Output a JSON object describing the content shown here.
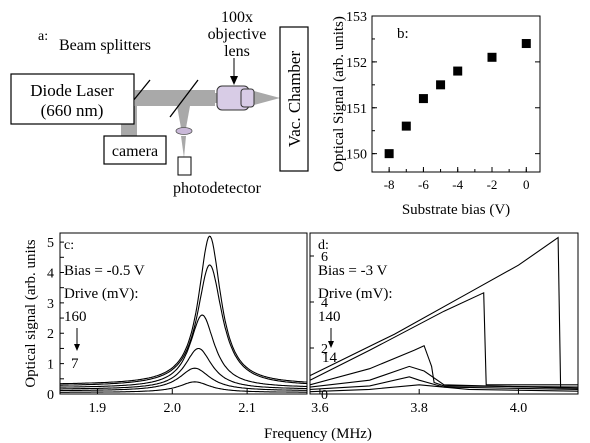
{
  "panel_a": {
    "label": "a:",
    "beam_splitters": "Beam splitters",
    "objective_line1": "100x",
    "objective_line2": "objective",
    "objective_line3": "lens",
    "laser_line1": "Diode Laser",
    "laser_line2": "(660 nm)",
    "camera": "camera",
    "photodetector": "photodetector",
    "chamber": "Vac. Chamber"
  },
  "chart_data": [
    {
      "panel": "b",
      "type": "scatter",
      "label": "b:",
      "xlabel": "Substrate bias (V)",
      "ylabel": "Optical Signal (arb. units)",
      "xlim": [
        -9,
        0.8
      ],
      "ylim": [
        149.6,
        153
      ],
      "xticks": [
        "-8",
        "-6",
        "-4",
        "-2",
        "0"
      ],
      "yticks": [
        "150",
        "151",
        "152",
        "153"
      ],
      "x": [
        -8,
        -7,
        -6,
        -5,
        -4,
        -2,
        0
      ],
      "y": [
        150.0,
        150.6,
        151.2,
        151.5,
        151.8,
        152.1,
        152.4
      ]
    },
    {
      "panel": "c",
      "type": "line",
      "label": "c:",
      "bias": "Bias = -0.5 V",
      "drive": "Drive (mV):",
      "drive_top": "160",
      "drive_bottom": "7",
      "ylabel": "Optical signal (arb. units",
      "xlim": [
        1.85,
        2.18
      ],
      "ylim": [
        0,
        5.3
      ],
      "xticks": [
        "1.9",
        "2.0",
        "2.1"
      ],
      "yticks": [
        "0",
        "0.5",
        "1",
        "1.5",
        "2",
        "2.5",
        "3",
        "3.5",
        "4",
        "4.5",
        "5"
      ],
      "series": [
        {
          "x0": 2.05,
          "w": 0.018,
          "A": 4.9,
          "base": 0.3
        },
        {
          "x0": 2.05,
          "w": 0.02,
          "A": 4.0,
          "base": 0.25
        },
        {
          "x0": 2.04,
          "w": 0.02,
          "A": 2.4,
          "base": 0.2
        },
        {
          "x0": 2.035,
          "w": 0.022,
          "A": 1.35,
          "base": 0.15
        },
        {
          "x0": 2.03,
          "w": 0.025,
          "A": 0.75,
          "base": 0.1
        },
        {
          "x0": 2.03,
          "w": 0.025,
          "A": 0.35,
          "base": 0.05
        }
      ]
    },
    {
      "panel": "d",
      "type": "line",
      "label": "d:",
      "bias": "Bias = -3 V",
      "drive": "Drive (mV):",
      "drive_top": "140",
      "drive_bottom": "14",
      "xlabel": "Frequency (MHz)",
      "xlim": [
        3.58,
        4.12
      ],
      "ylim": [
        0,
        7
      ],
      "xticks": [
        "3.6",
        "3.8",
        "4.0"
      ],
      "yticks": [
        "0",
        "2",
        "4",
        "6"
      ],
      "series": [
        {
          "x": [
            3.58,
            3.75,
            3.9,
            4.0,
            4.08,
            4.085,
            4.12
          ],
          "y": [
            0.8,
            2.6,
            4.4,
            5.6,
            6.8,
            0.3,
            0.3
          ]
        },
        {
          "x": [
            3.58,
            3.7,
            3.85,
            3.93,
            3.935,
            4.12
          ],
          "y": [
            0.6,
            1.9,
            3.6,
            4.4,
            0.4,
            0.4
          ]
        },
        {
          "x": [
            3.58,
            3.7,
            3.79,
            3.81,
            3.82,
            3.825,
            3.83,
            3.85,
            4.12
          ],
          "y": [
            0.4,
            1.1,
            1.9,
            2.1,
            1.5,
            1.2,
            0.5,
            0.35,
            0.3
          ]
        },
        {
          "x": [
            3.58,
            3.7,
            3.78,
            3.81,
            3.85,
            4.12
          ],
          "y": [
            0.3,
            0.6,
            1.2,
            1.0,
            0.4,
            0.25
          ]
        },
        {
          "x": [
            3.58,
            3.7,
            3.78,
            3.8,
            3.85,
            4.12
          ],
          "y": [
            0.2,
            0.35,
            0.75,
            0.6,
            0.3,
            0.2
          ]
        },
        {
          "x": [
            3.58,
            3.7,
            3.8,
            3.9,
            4.12
          ],
          "y": [
            0.1,
            0.2,
            0.4,
            0.2,
            0.12
          ]
        }
      ]
    }
  ]
}
